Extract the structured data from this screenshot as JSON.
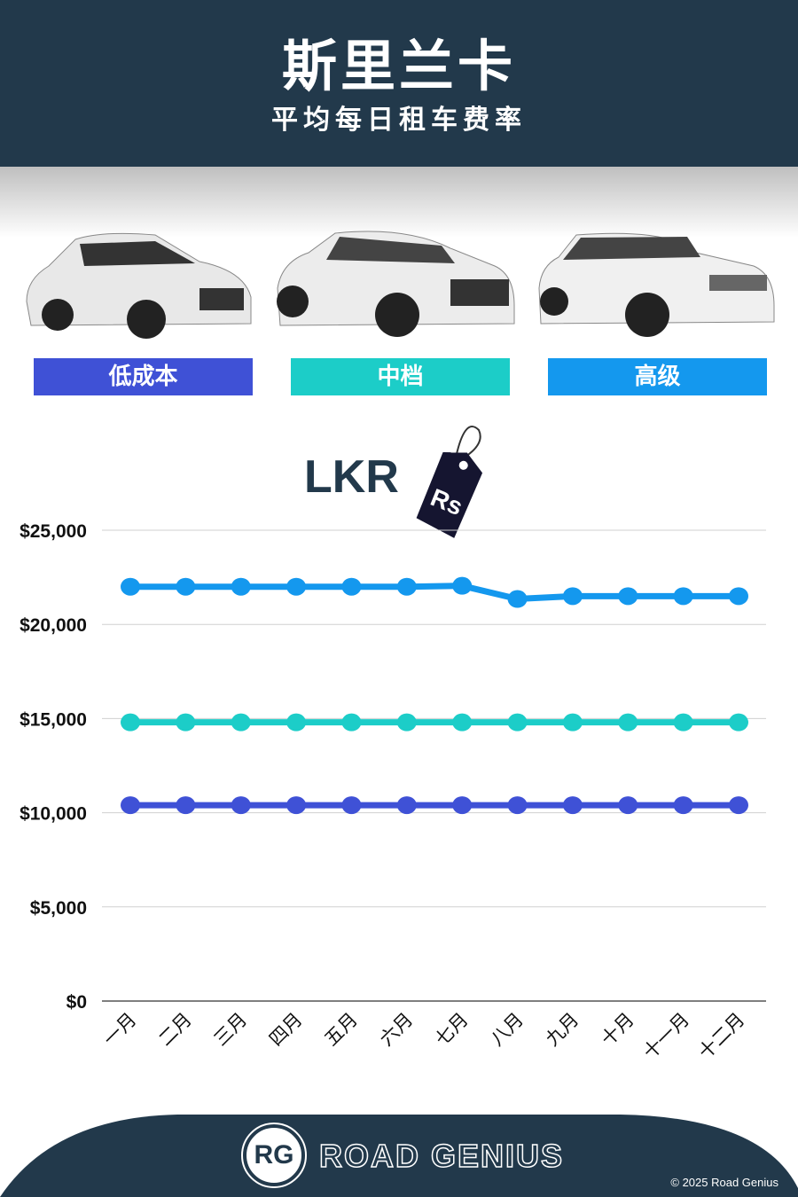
{
  "header": {
    "title": "斯里兰卡",
    "subtitle": "平均每日租车费率"
  },
  "categories": [
    {
      "label": "低成本",
      "color": "#3f51d6"
    },
    {
      "label": "中档",
      "color": "#1ccdc8"
    },
    {
      "label": "高级",
      "color": "#1498ee"
    }
  ],
  "currency": {
    "code": "LKR",
    "tag": "Rs"
  },
  "chart_data": {
    "type": "line",
    "categories": [
      "一月",
      "二月",
      "三月",
      "四月",
      "五月",
      "六月",
      "七月",
      "八月",
      "九月",
      "十月",
      "十一月",
      "十二月"
    ],
    "series": [
      {
        "name": "高级",
        "color": "#1498ee",
        "values": [
          22000,
          22000,
          22000,
          22000,
          22000,
          22000,
          22050,
          21350,
          21500,
          21500,
          21500,
          21500
        ]
      },
      {
        "name": "中档",
        "color": "#1ccdc8",
        "values": [
          14800,
          14800,
          14800,
          14800,
          14800,
          14800,
          14800,
          14800,
          14800,
          14800,
          14800,
          14800
        ]
      },
      {
        "name": "低成本",
        "color": "#3f51d6",
        "values": [
          10400,
          10400,
          10400,
          10400,
          10400,
          10400,
          10400,
          10400,
          10400,
          10400,
          10400,
          10400
        ]
      }
    ],
    "yticks": [
      "$0",
      "$5,000",
      "$10,000",
      "$15,000",
      "$20,000",
      "$25,000"
    ],
    "ylim": [
      0,
      25000
    ],
    "grid": true
  },
  "footer": {
    "brand": "ROAD GENIUS",
    "logo": "RG",
    "copyright": "© 2025 Road Genius"
  }
}
